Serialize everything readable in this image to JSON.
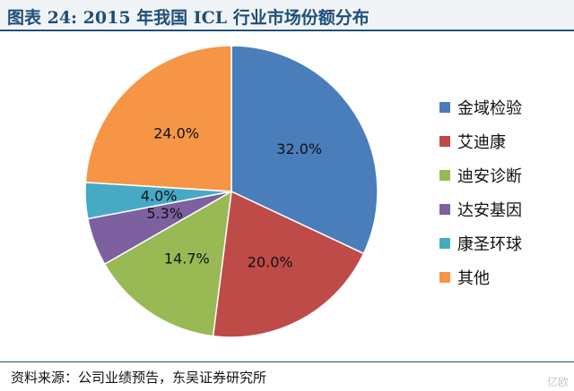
{
  "header": {
    "title": "图表 24: 2015 年我国 ICL 行业市场份额分布"
  },
  "footer": {
    "source": "资料来源：公司业绩预告，东吴证券研究所",
    "watermark": "亿欧"
  },
  "chart_data": {
    "type": "pie",
    "title": "",
    "legend_position": "right",
    "slices": [
      {
        "label": "金域检验",
        "value": 32.0,
        "value_label": "32.0%",
        "color": "#4a7ebb"
      },
      {
        "label": "艾迪康",
        "value": 20.0,
        "value_label": "20.0%",
        "color": "#be4b48"
      },
      {
        "label": "迪安诊断",
        "value": 14.7,
        "value_label": "14.7%",
        "color": "#98b954"
      },
      {
        "label": "达安基因",
        "value": 5.3,
        "value_label": "5.3%",
        "color": "#7d60a0"
      },
      {
        "label": "康圣环球",
        "value": 4.0,
        "value_label": "4.0%",
        "color": "#46aac5"
      },
      {
        "label": "其他",
        "value": 24.0,
        "value_label": "24.0%",
        "color": "#f69546"
      }
    ]
  }
}
